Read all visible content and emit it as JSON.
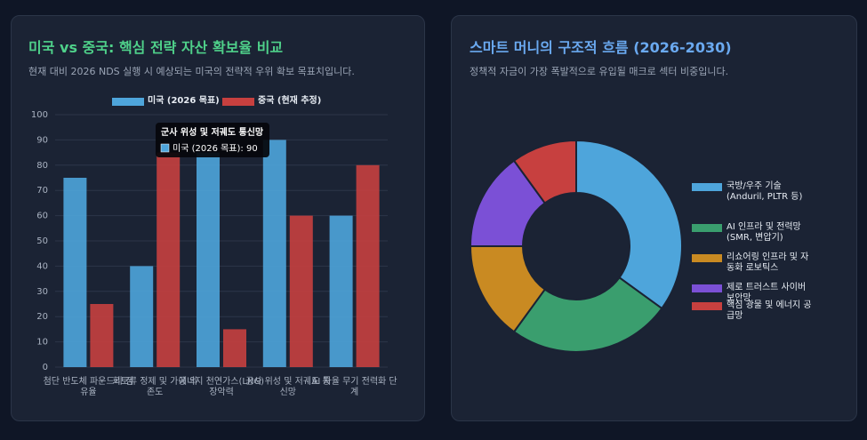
{
  "chart_data": [
    {
      "type": "bar",
      "title": "미국 vs 중국: 핵심 전략 자산 확보율 비교",
      "subtitle": "현재 대비 2026 NDS 실행 시 예상되는 미국의 전략적 우위 확보 목표치입니다.",
      "categories": [
        "첨단 반도체 파운드리 점유율",
        "희토류 정제 및 가공 의존도",
        "에너지 천연가스(LNG) 장악력",
        "군사 위성 및 저궤도 통신망",
        "AI 자율 무기 전력화 단계"
      ],
      "series": [
        {
          "name": "미국 (2026 목표)",
          "color": "#4ea5db",
          "values": [
            75,
            40,
            85,
            90,
            60
          ]
        },
        {
          "name": "중국 (현재 추정)",
          "color": "#c7403f",
          "values": [
            25,
            85,
            15,
            60,
            80
          ]
        }
      ],
      "ylim": [
        0,
        100
      ],
      "yticks": [
        0,
        10,
        20,
        30,
        40,
        50,
        60,
        70,
        80,
        90,
        100
      ],
      "grid": true,
      "legend": "top",
      "tooltip": {
        "title": "군사 위성 및 저궤도 통신망",
        "text": "미국 (2026 목표): 90"
      }
    },
    {
      "type": "doughnut",
      "title": "스마트 머니의 구조적 흐름 (2026-2030)",
      "subtitle": "정책적 자금이 가장 폭발적으로 유입될 매크로 섹터 비중입니다.",
      "categories": [
        "국방/우주 기술 (Anduril, PLTR 등)",
        "AI 인프라 및 전력망 (SMR, 변압기)",
        "리쇼어링 인프라 및 자동화 로보틱스",
        "제로 트러스트 사이버 보안망",
        "핵심 광물 및 에너지 공급망"
      ],
      "values": [
        35,
        25,
        15,
        15,
        10
      ],
      "colors": [
        "#4ea5db",
        "#3a9e6e",
        "#c98a22",
        "#7b50d6",
        "#c7403f"
      ],
      "legend": "right"
    }
  ]
}
